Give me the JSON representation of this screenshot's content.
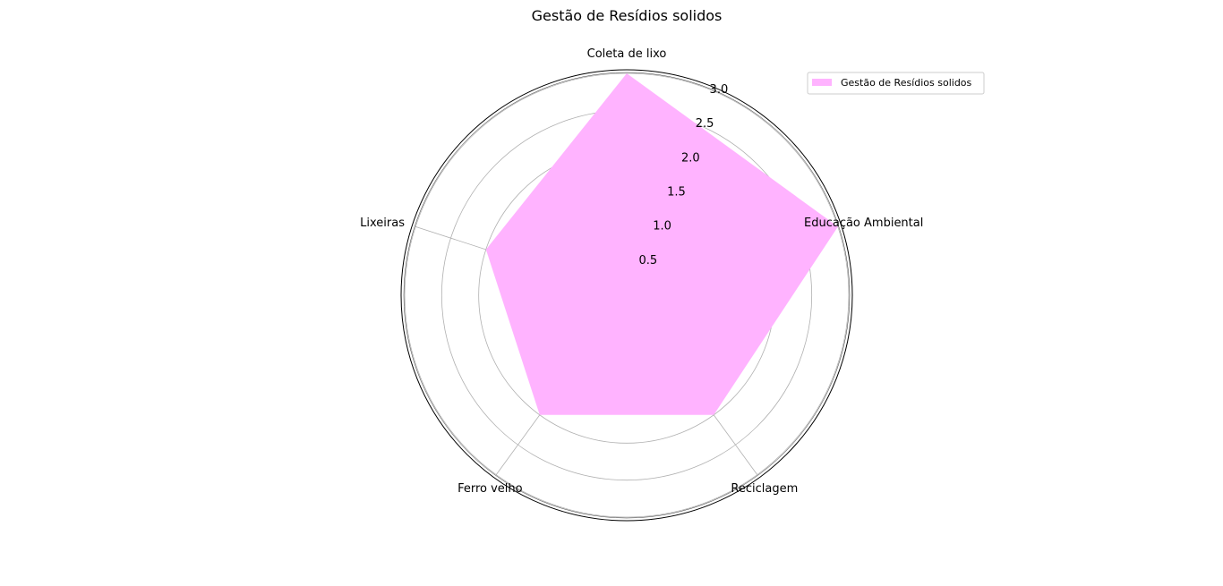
{
  "chart_data": {
    "type": "radar",
    "title": "Gestão de Resídios solidos",
    "categories": [
      "Coleta de lixo",
      "Educação Ambiental",
      "Reciclagem",
      "Ferro velho",
      "Lixeiras"
    ],
    "series": [
      {
        "name": "Gestão de Resídios solidos",
        "values": [
          3.0,
          3.0,
          2.0,
          2.0,
          2.0
        ],
        "color": "#ffb3ff"
      }
    ],
    "rlim": [
      0,
      3.0
    ],
    "rticks": [
      "0.5",
      "1.0",
      "1.5",
      "2.0",
      "2.5",
      "3.0"
    ],
    "grid": true,
    "legend_position": "top-right"
  }
}
